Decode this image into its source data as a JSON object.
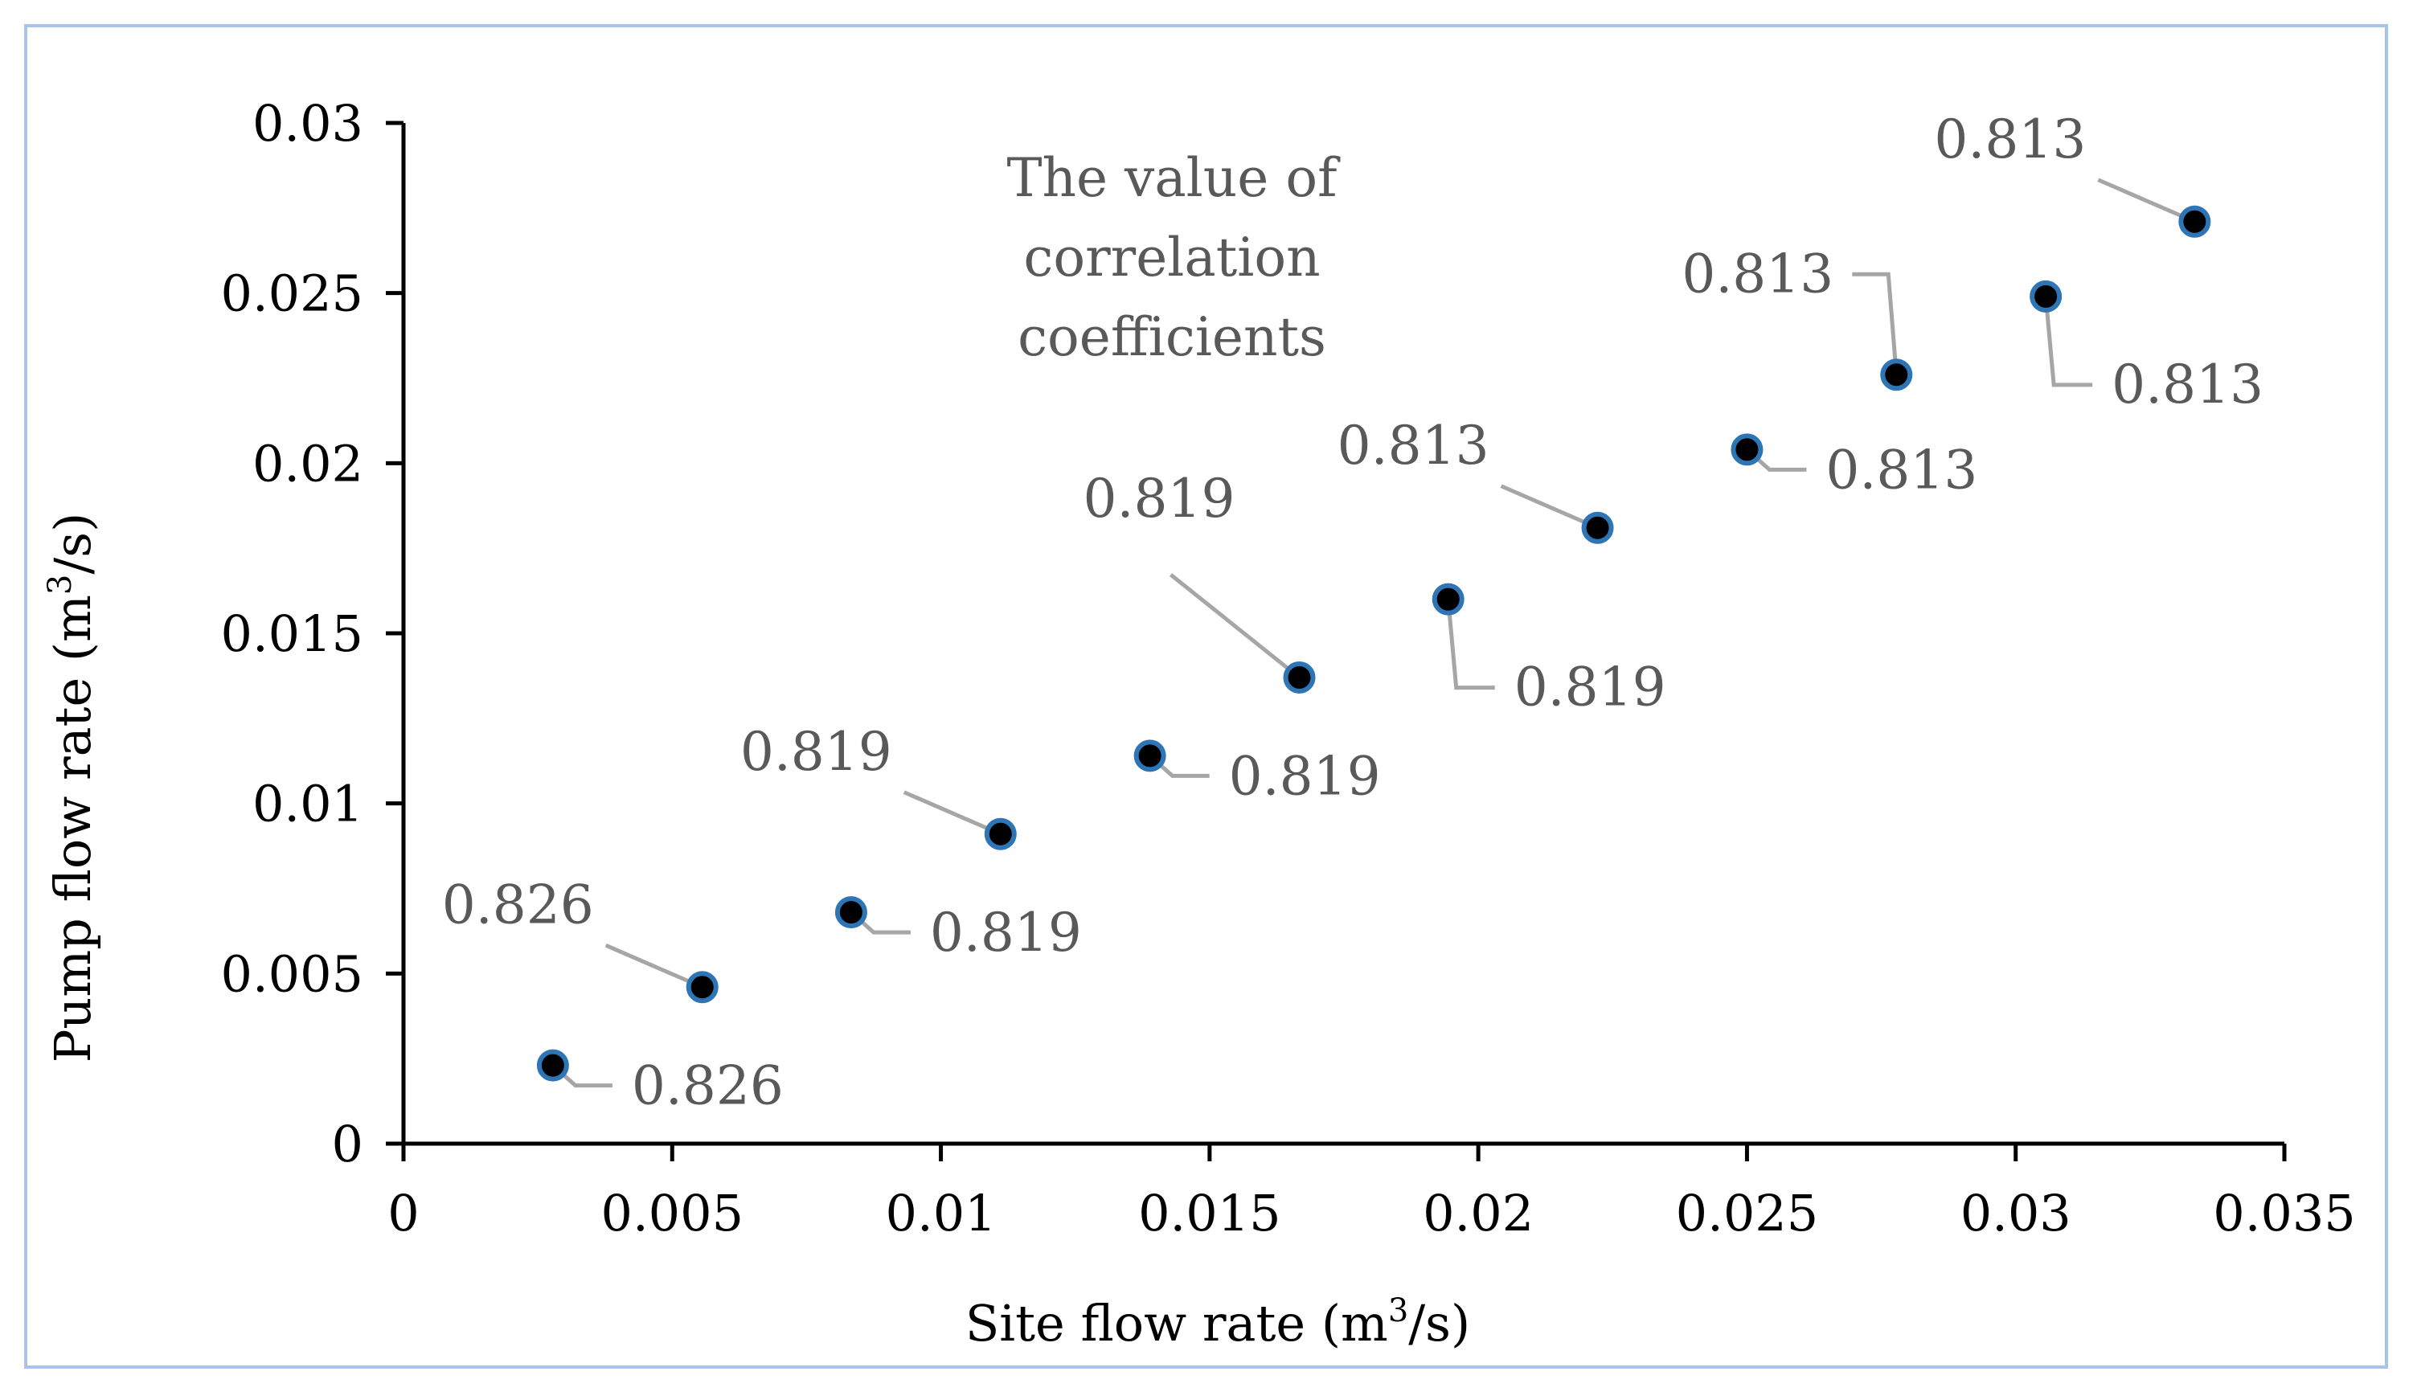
{
  "chart_data": {
    "type": "scatter",
    "title": "",
    "xlabel": {
      "prefix": "Site flow rate (m",
      "sup": "3",
      "suffix": "/s)"
    },
    "ylabel": {
      "prefix": "Pump flow rate (m",
      "sup": "3",
      "suffix": "/s)"
    },
    "xlim": [
      0,
      0.035
    ],
    "ylim": [
      0,
      0.03
    ],
    "x_ticks": [
      "0",
      "0.005",
      "0.01",
      "0.015",
      "0.02",
      "0.025",
      "0.03",
      "0.035"
    ],
    "y_ticks": [
      "0",
      "0.005",
      "0.01",
      "0.015",
      "0.02",
      "0.025",
      "0.03"
    ],
    "annotation": [
      "The value of",
      "correlation",
      "coefficients"
    ],
    "marker_fill": "#000000",
    "marker_edge": "#2e75b6",
    "leader_color": "#a6a6a6",
    "points": [
      {
        "x": 0.00278,
        "y": 0.0023,
        "label": "0.826",
        "label_pos": "right-below"
      },
      {
        "x": 0.00556,
        "y": 0.0046,
        "label": "0.826",
        "label_pos": "upper-left"
      },
      {
        "x": 0.00833,
        "y": 0.0068,
        "label": "0.819",
        "label_pos": "right-below"
      },
      {
        "x": 0.01111,
        "y": 0.0091,
        "label": "0.819",
        "label_pos": "upper-left"
      },
      {
        "x": 0.01389,
        "y": 0.0114,
        "label": "0.819",
        "label_pos": "right-below"
      },
      {
        "x": 0.01667,
        "y": 0.0137,
        "label": "0.819",
        "label_pos": "upper-left-far"
      },
      {
        "x": 0.01944,
        "y": 0.016,
        "label": "0.819",
        "label_pos": "below-right"
      },
      {
        "x": 0.02222,
        "y": 0.0181,
        "label": "0.813",
        "label_pos": "upper-left"
      },
      {
        "x": 0.025,
        "y": 0.0204,
        "label": "0.813",
        "label_pos": "right-below"
      },
      {
        "x": 0.02778,
        "y": 0.0226,
        "label": "0.813",
        "label_pos": "upper-left-elbow"
      },
      {
        "x": 0.03056,
        "y": 0.0249,
        "label": "0.813",
        "label_pos": "below-right"
      },
      {
        "x": 0.03333,
        "y": 0.0271,
        "label": "0.813",
        "label_pos": "upper-left"
      }
    ]
  }
}
